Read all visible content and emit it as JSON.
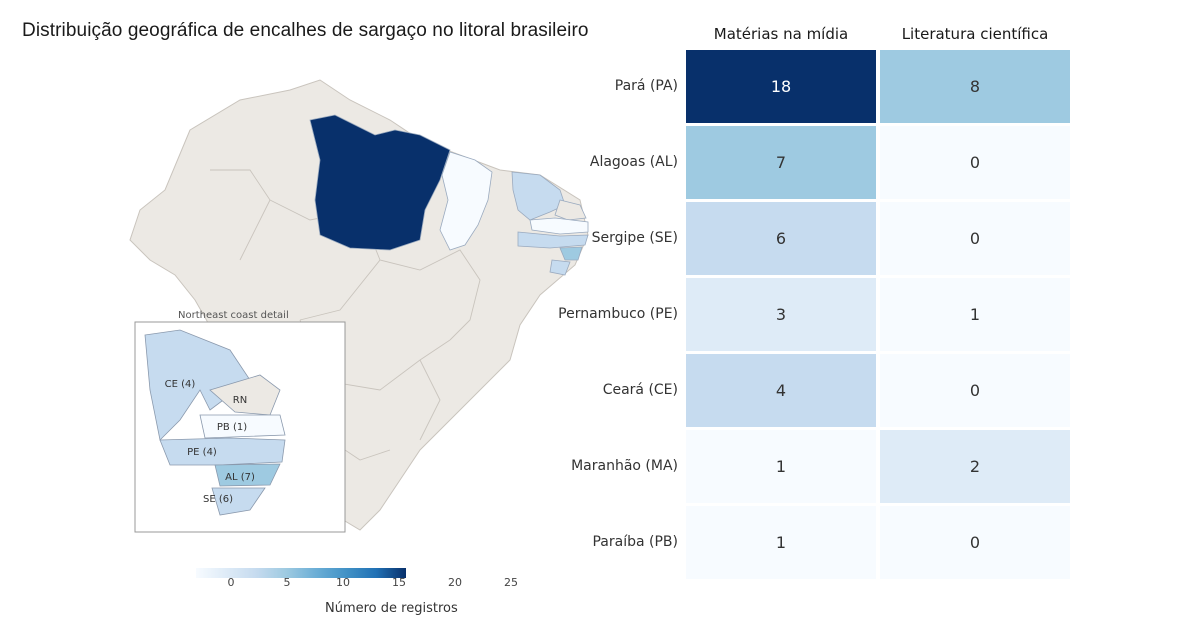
{
  "chart_data": [
    {
      "type": "map",
      "title": "Distribuição geográfica de encalhes de sargaço no litoral brasileiro",
      "inset_title": "Northeast coast detail",
      "inset_labels": [
        "CE (4)",
        "RN",
        "PB (1)",
        "PE (4)",
        "AL (7)",
        "SE (6)"
      ],
      "colorbar": {
        "label": "Número de registros",
        "ticks": [
          "0",
          "5",
          "10",
          "15",
          "20",
          "25"
        ],
        "range": [
          0,
          25
        ]
      },
      "regions": [
        {
          "state": "PA",
          "value": 18
        },
        {
          "state": "MA",
          "value": 1
        },
        {
          "state": "CE",
          "value": 4
        },
        {
          "state": "RN",
          "value": 0
        },
        {
          "state": "PB",
          "value": 1
        },
        {
          "state": "PE",
          "value": 4
        },
        {
          "state": "AL",
          "value": 7
        },
        {
          "state": "SE",
          "value": 6
        }
      ]
    },
    {
      "type": "heatmap",
      "columns": [
        "Matérias na mídia",
        "Literatura científica"
      ],
      "rows": [
        "Pará (PA)",
        "Alagoas (AL)",
        "Sergipe (SE)",
        "Pernambuco (PE)",
        "Ceará (CE)",
        "Maranhão (MA)",
        "Paraíba (PB)"
      ],
      "values": [
        [
          18,
          8
        ],
        [
          7,
          0
        ],
        [
          6,
          0
        ],
        [
          3,
          1
        ],
        [
          4,
          0
        ],
        [
          1,
          2
        ],
        [
          1,
          0
        ]
      ],
      "colors": [
        "#f7fbff",
        "#deebf7",
        "#c6dbef",
        "#9ecae1",
        "#6baed6",
        "#4292c6",
        "#2171b5",
        "#08306b"
      ]
    }
  ]
}
